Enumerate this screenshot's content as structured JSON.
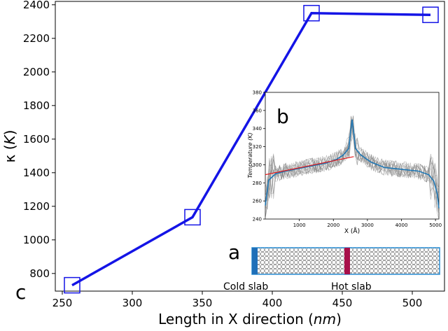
{
  "chart_data": [
    {
      "panel_label": "c",
      "type": "line",
      "xlabel": "Length in X direction (",
      "xlabel_unit": "nm",
      "xlabel_close": ")",
      "ylabel": "κ (",
      "ylabel_unit": "K",
      "ylabel_close": ")",
      "xlim": [
        245,
        523
      ],
      "ylim": [
        695,
        2420
      ],
      "x_ticks": [
        250,
        300,
        350,
        400,
        450,
        500
      ],
      "y_ticks": [
        800,
        1000,
        1200,
        1400,
        1600,
        1800,
        2000,
        2200,
        2400
      ],
      "series": [
        {
          "x": [
            257,
            343,
            428,
            513
          ],
          "y": [
            730,
            1135,
            2350,
            2340
          ],
          "color": "#1414e6",
          "marker": "square"
        }
      ]
    },
    {
      "panel_label": "b",
      "type": "line",
      "xlabel": "X (",
      "xlabel_unit": "Å",
      "xlabel_close": ")",
      "ylabel": "Temperature (K)",
      "xlim": [
        0,
        5100
      ],
      "ylim": [
        240,
        380
      ],
      "x_ticks": [
        1000,
        2000,
        3000,
        4000,
        5000
      ],
      "y_ticks": [
        240,
        260,
        280,
        300,
        320,
        340,
        360,
        380
      ],
      "series": [
        {
          "x": [
            0,
            100,
            300,
            600,
            1000,
            1400,
            1800,
            2100,
            2300,
            2450,
            2550,
            2650,
            2800,
            3100,
            3500,
            4000,
            4500,
            4800,
            4950,
            5050,
            5100
          ],
          "y": [
            255,
            283,
            290,
            293,
            296,
            299,
            302,
            306,
            311,
            318,
            350,
            318,
            311,
            303,
            297,
            295,
            293,
            289,
            282,
            268,
            252
          ],
          "color": "#1f77b4"
        },
        {
          "x": [
            0,
            2600
          ],
          "y": [
            289,
            309
          ],
          "color": "#e41a1c"
        }
      ],
      "noise_color": "#808080"
    }
  ],
  "labels": {
    "panel_a": "a",
    "cold_slab": "Cold slab",
    "hot_slab": "Hot slab"
  },
  "colors": {
    "main_line": "#1414e6",
    "inset_mean": "#1f77b4",
    "inset_fit": "#e41a1c",
    "cold": "#1f6fb8",
    "hot": "#a8104a",
    "lattice_border": "#2b8fd6"
  }
}
